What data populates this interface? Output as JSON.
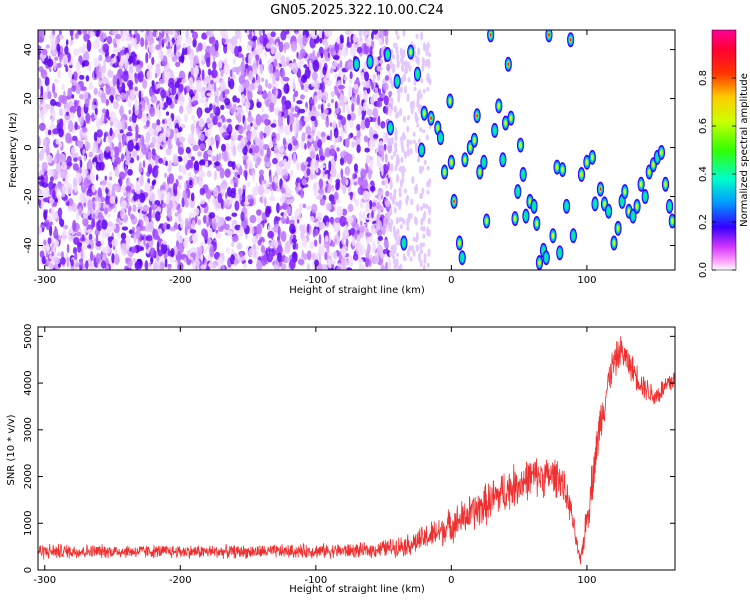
{
  "title": "GN05.2025.322.10.00.C24",
  "chart_data": [
    {
      "type": "heatmap",
      "xlabel": "Height of straight line (km)",
      "ylabel": "Frequency (Hz)",
      "xlim": [
        -305,
        165
      ],
      "ylim": [
        -50,
        48
      ],
      "xticks": [
        -300,
        -200,
        -100,
        0,
        100
      ],
      "yticks": [
        -40,
        -20,
        0,
        20,
        40
      ],
      "colorbar": {
        "label": "Normalized spectral amplitude",
        "range": [
          0,
          1
        ],
        "ticks": [
          0.0,
          0.2,
          0.4,
          0.6,
          0.8
        ],
        "colors": [
          "#ffffff",
          "#e6b8ff",
          "#9933ff",
          "#3300ff",
          "#0099ff",
          "#00ffcc",
          "#33ff00",
          "#ccff00",
          "#ffcc00",
          "#ff3300",
          "#ff0066",
          "#ff0099"
        ]
      },
      "noise_region": [
        -305,
        -45
      ],
      "peaks": [
        {
          "x": -70,
          "y": 34,
          "v": 0.35
        },
        {
          "x": -60,
          "y": 35,
          "v": 0.4
        },
        {
          "x": -45,
          "y": 8,
          "v": 0.3
        },
        {
          "x": -47,
          "y": 38,
          "v": 0.45
        },
        {
          "x": -40,
          "y": 27,
          "v": 0.5
        },
        {
          "x": -35,
          "y": -39,
          "v": 0.35
        },
        {
          "x": -30,
          "y": 39,
          "v": 0.6
        },
        {
          "x": -25,
          "y": 30,
          "v": 0.5
        },
        {
          "x": -20,
          "y": 14,
          "v": 0.6
        },
        {
          "x": -15,
          "y": 12,
          "v": 0.7
        },
        {
          "x": -10,
          "y": 8,
          "v": 0.6
        },
        {
          "x": -8,
          "y": 4,
          "v": 0.5
        },
        {
          "x": -5,
          "y": -10,
          "v": 0.65
        },
        {
          "x": -22,
          "y": -1,
          "v": 0.55
        },
        {
          "x": -1,
          "y": 19,
          "v": 0.6
        },
        {
          "x": 0,
          "y": -6,
          "v": 0.6
        },
        {
          "x": 2,
          "y": -22,
          "v": 0.75
        },
        {
          "x": 6,
          "y": -39,
          "v": 0.65
        },
        {
          "x": 8,
          "y": -45,
          "v": 0.5
        },
        {
          "x": 10,
          "y": -5,
          "v": 0.6
        },
        {
          "x": 14,
          "y": 0,
          "v": 0.65
        },
        {
          "x": 17,
          "y": 3,
          "v": 0.6
        },
        {
          "x": 19,
          "y": 13,
          "v": 0.7
        },
        {
          "x": 21,
          "y": -10,
          "v": 0.6
        },
        {
          "x": 24,
          "y": -6,
          "v": 0.55
        },
        {
          "x": 26,
          "y": -30,
          "v": 0.6
        },
        {
          "x": 29,
          "y": 46,
          "v": 0.8
        },
        {
          "x": 32,
          "y": 7,
          "v": 0.55
        },
        {
          "x": 35,
          "y": 17,
          "v": 0.65
        },
        {
          "x": 38,
          "y": -5,
          "v": 0.5
        },
        {
          "x": 40,
          "y": 10,
          "v": 0.6
        },
        {
          "x": 42,
          "y": 34,
          "v": 0.75
        },
        {
          "x": 44,
          "y": 12,
          "v": 0.65
        },
        {
          "x": 47,
          "y": -29,
          "v": 0.6
        },
        {
          "x": 49,
          "y": -18,
          "v": 0.55
        },
        {
          "x": 51,
          "y": 1,
          "v": 0.65
        },
        {
          "x": 53,
          "y": -11,
          "v": 0.5
        },
        {
          "x": 55,
          "y": -28,
          "v": 0.55
        },
        {
          "x": 58,
          "y": -22,
          "v": 0.6
        },
        {
          "x": 61,
          "y": -24,
          "v": 0.55
        },
        {
          "x": 63,
          "y": -31,
          "v": 0.6
        },
        {
          "x": 65,
          "y": -47,
          "v": 0.6
        },
        {
          "x": 68,
          "y": -42,
          "v": 0.5
        },
        {
          "x": 70,
          "y": -45,
          "v": 0.55
        },
        {
          "x": 72,
          "y": 46,
          "v": 0.8
        },
        {
          "x": 75,
          "y": -36,
          "v": 0.6
        },
        {
          "x": 78,
          "y": -8,
          "v": 0.65
        },
        {
          "x": 80,
          "y": -43,
          "v": 0.55
        },
        {
          "x": 82,
          "y": -9,
          "v": 0.6
        },
        {
          "x": 85,
          "y": -24,
          "v": 0.55
        },
        {
          "x": 88,
          "y": 44,
          "v": 0.75
        },
        {
          "x": 90,
          "y": -36,
          "v": 0.55
        },
        {
          "x": 96,
          "y": -11,
          "v": 0.6
        },
        {
          "x": 100,
          "y": -6,
          "v": 0.65
        },
        {
          "x": 104,
          "y": -4,
          "v": 0.6
        },
        {
          "x": 106,
          "y": -23,
          "v": 0.55
        },
        {
          "x": 110,
          "y": -17,
          "v": 0.7
        },
        {
          "x": 113,
          "y": -23,
          "v": 0.6
        },
        {
          "x": 116,
          "y": -26,
          "v": 0.55
        },
        {
          "x": 120,
          "y": -39,
          "v": 0.65
        },
        {
          "x": 123,
          "y": -33,
          "v": 0.6
        },
        {
          "x": 126,
          "y": -22,
          "v": 0.55
        },
        {
          "x": 128,
          "y": -18,
          "v": 0.65
        },
        {
          "x": 131,
          "y": -26,
          "v": 0.6
        },
        {
          "x": 134,
          "y": -28,
          "v": 0.55
        },
        {
          "x": 137,
          "y": -24,
          "v": 0.65
        },
        {
          "x": 140,
          "y": -15,
          "v": 0.6
        },
        {
          "x": 143,
          "y": -20,
          "v": 0.55
        },
        {
          "x": 146,
          "y": -10,
          "v": 0.65
        },
        {
          "x": 149,
          "y": -7,
          "v": 0.6
        },
        {
          "x": 152,
          "y": -4,
          "v": 0.55
        },
        {
          "x": 155,
          "y": -2,
          "v": 0.6
        },
        {
          "x": 158,
          "y": -15,
          "v": 0.65
        },
        {
          "x": 161,
          "y": -24,
          "v": 0.55
        },
        {
          "x": 163,
          "y": -30,
          "v": 0.6
        }
      ]
    },
    {
      "type": "line",
      "xlabel": "Height of straight line (km)",
      "ylabel": "SNR (10 * v/v)",
      "xlim": [
        -305,
        165
      ],
      "ylim": [
        0,
        5200
      ],
      "xticks": [
        -300,
        -200,
        -100,
        0,
        100
      ],
      "yticks": [
        0,
        1000,
        2000,
        3000,
        4000,
        5000
      ],
      "color": "#f03030",
      "trend": [
        {
          "x": -305,
          "y": 400,
          "noise": 180
        },
        {
          "x": -250,
          "y": 400,
          "noise": 150
        },
        {
          "x": -150,
          "y": 390,
          "noise": 150
        },
        {
          "x": -60,
          "y": 420,
          "noise": 170
        },
        {
          "x": -30,
          "y": 550,
          "noise": 250
        },
        {
          "x": -10,
          "y": 800,
          "noise": 350
        },
        {
          "x": 20,
          "y": 1300,
          "noise": 450
        },
        {
          "x": 40,
          "y": 1700,
          "noise": 500
        },
        {
          "x": 60,
          "y": 2000,
          "noise": 450
        },
        {
          "x": 80,
          "y": 2000,
          "noise": 450
        },
        {
          "x": 88,
          "y": 1300,
          "noise": 300
        },
        {
          "x": 95,
          "y": 150,
          "noise": 150
        },
        {
          "x": 102,
          "y": 1500,
          "noise": 500
        },
        {
          "x": 110,
          "y": 3200,
          "noise": 500
        },
        {
          "x": 118,
          "y": 4300,
          "noise": 400
        },
        {
          "x": 125,
          "y": 4700,
          "noise": 350
        },
        {
          "x": 140,
          "y": 4000,
          "noise": 300
        },
        {
          "x": 150,
          "y": 3700,
          "noise": 250
        },
        {
          "x": 165,
          "y": 4100,
          "noise": 300
        }
      ]
    }
  ]
}
